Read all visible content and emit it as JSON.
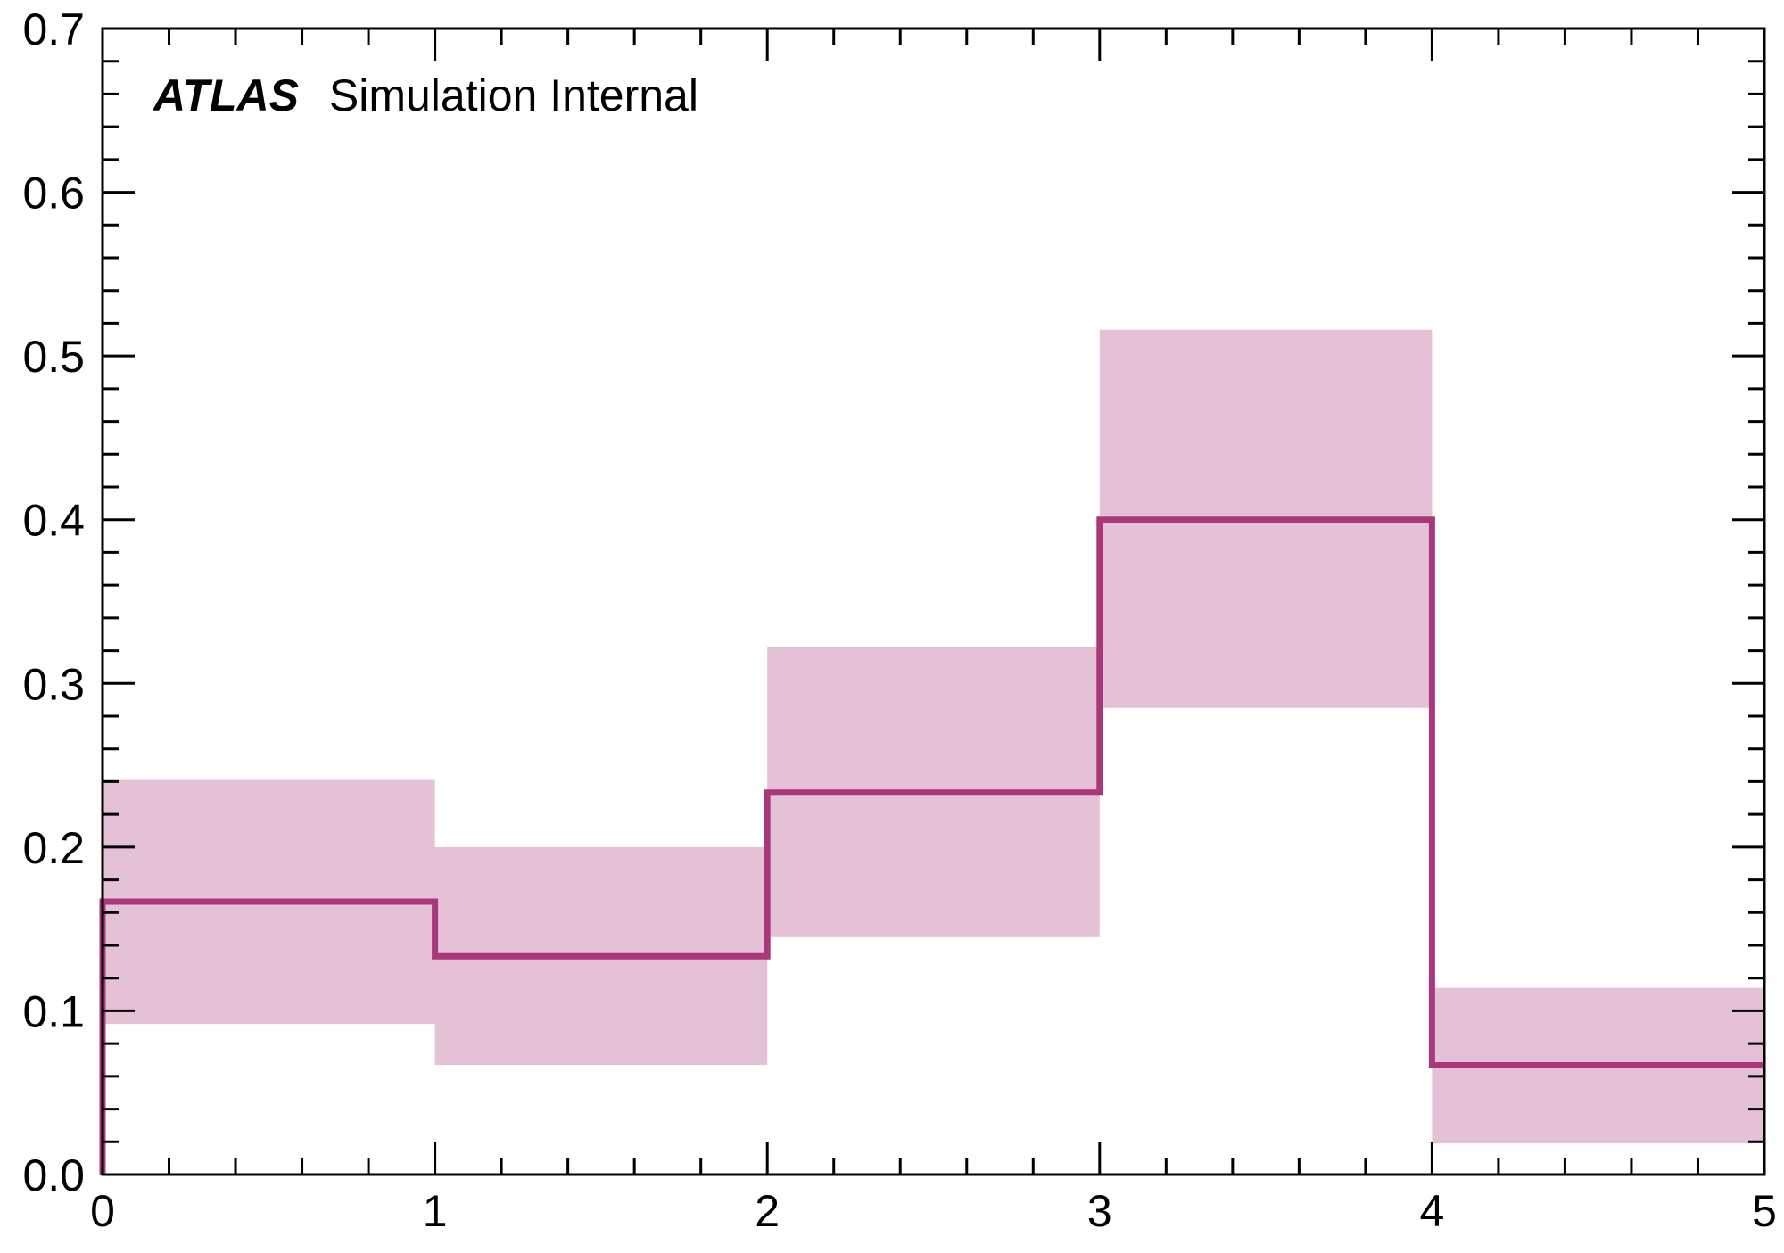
{
  "chart_data": {
    "type": "histogram",
    "title": "",
    "xlabel": "",
    "ylabel": "",
    "xlim": [
      0,
      5
    ],
    "ylim": [
      0,
      0.7
    ],
    "grid": false,
    "x_ticks": [
      "0",
      "1",
      "2",
      "3",
      "4",
      "5"
    ],
    "y_ticks": [
      "0.0",
      "0.1",
      "0.2",
      "0.3",
      "0.4",
      "0.5",
      "0.6",
      "0.7"
    ],
    "label_bold": "ATLAS",
    "label_rest": "Simulation Internal",
    "bin_edges": [
      0,
      1,
      2,
      3,
      4,
      5
    ],
    "series": [
      {
        "values": [
          0.1667,
          0.1333,
          0.2333,
          0.4,
          0.0667
        ],
        "band_low": [
          0.092,
          0.067,
          0.145,
          0.285,
          0.019
        ],
        "band_high": [
          0.241,
          0.2,
          0.322,
          0.516,
          0.114
        ],
        "line_color": "#a8387a",
        "band_color": "#e5c1d5"
      }
    ]
  }
}
